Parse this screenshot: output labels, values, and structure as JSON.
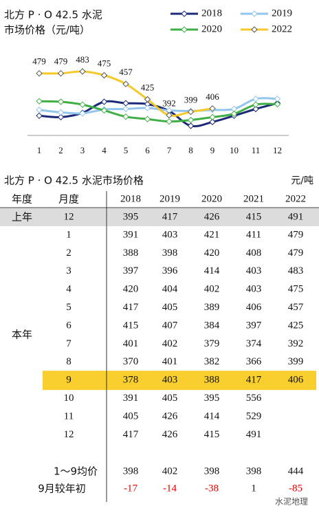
{
  "chart_data": {
    "type": "line",
    "title": "北方 P · O 42.5 水泥",
    "subtitle": "市场价格（元/吨）",
    "categories": [
      1,
      2,
      3,
      4,
      5,
      6,
      7,
      8,
      9,
      10,
      11,
      12
    ],
    "series": [
      {
        "name": "2018",
        "color": "#1c2a78",
        "values": [
          391,
          388,
          397,
          420,
          417,
          415,
          401,
          370,
          378,
          391,
          405,
          417
        ]
      },
      {
        "name": "2019",
        "color": "#92c5ee",
        "values": [
          403,
          398,
          396,
          404,
          405,
          407,
          402,
          401,
          403,
          405,
          426,
          426
        ]
      },
      {
        "name": "2020",
        "color": "#3fae45",
        "values": [
          421,
          420,
          414,
          402,
          389,
          384,
          379,
          382,
          388,
          395,
          414,
          415
        ]
      },
      {
        "name": "2022",
        "color": "#f6c928",
        "values": [
          479,
          479,
          483,
          475,
          457,
          425,
          392,
          399,
          406,
          null,
          null,
          null
        ],
        "data_labels": true
      }
    ],
    "ylim": [
      350,
      500
    ]
  },
  "table": {
    "title": "北方 P · O 42.5 水泥市场价格",
    "unit": "元/吨",
    "headers": [
      "年度",
      "月度",
      "2018",
      "2019",
      "2020",
      "2021",
      "2022"
    ],
    "prev_year": {
      "label": "上年",
      "month": 12,
      "values": [
        395,
        417,
        426,
        415,
        491
      ]
    },
    "current_label": "本年",
    "rows": [
      [
        1,
        391,
        403,
        421,
        411,
        479
      ],
      [
        2,
        388,
        398,
        420,
        408,
        479
      ],
      [
        3,
        397,
        396,
        414,
        403,
        483
      ],
      [
        4,
        420,
        404,
        402,
        403,
        475
      ],
      [
        5,
        417,
        405,
        389,
        406,
        457
      ],
      [
        6,
        415,
        407,
        384,
        397,
        425
      ],
      [
        7,
        401,
        402,
        379,
        374,
        392
      ],
      [
        8,
        370,
        401,
        382,
        366,
        399
      ],
      [
        9,
        378,
        403,
        388,
        417,
        406
      ],
      [
        10,
        391,
        405,
        395,
        556,
        null
      ],
      [
        11,
        405,
        426,
        414,
        529,
        null
      ],
      [
        12,
        417,
        426,
        415,
        491,
        null
      ]
    ],
    "highlight_month": 9,
    "avg": {
      "label": "1～9均价",
      "values": [
        398,
        402,
        398,
        398,
        444
      ]
    },
    "change": {
      "label": "9月较年初",
      "values": [
        -17,
        -14,
        -38,
        1,
        -85
      ]
    }
  },
  "watermark": "水泥地理"
}
